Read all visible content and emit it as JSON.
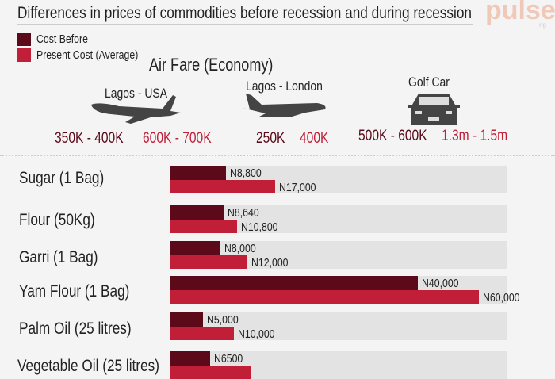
{
  "title": "Differences in prices of commodities before recession and during recession",
  "logo": {
    "text": "pulse",
    "sub": "ng"
  },
  "colors": {
    "before": "#5c0a1a",
    "present": "#c11f38",
    "track": "#e3e3e3"
  },
  "legend": [
    {
      "label": "Cost Before"
    },
    {
      "label": "Present Cost (Average)"
    }
  ],
  "airfare": {
    "title": "Air Fare (Economy)",
    "items": [
      {
        "label": "Lagos - USA",
        "icon": "airplane-icon",
        "before": "350K - 400K",
        "present": "600K - 700K"
      },
      {
        "label": "Lagos - London",
        "icon": "airplane-icon",
        "before": "250K",
        "present": "400K"
      },
      {
        "label": "Golf Car",
        "icon": "car-icon",
        "before": "500K - 600K",
        "present": "1.3m - 1.5m"
      }
    ]
  },
  "chart_data": {
    "type": "bar",
    "orientation": "horizontal",
    "categories": [
      "Sugar (1 Bag)",
      "Flour (50Kg)",
      "Garri (1 Bag)",
      "Yam Flour (1 Bag)",
      "Palm Oil (25 litres)",
      "Vegetable Oil (25 litres)"
    ],
    "series": [
      {
        "name": "Cost Before",
        "values": [
          8800,
          8640,
          8000,
          40000,
          5000,
          6500
        ],
        "labels": [
          "N8,800",
          "N8,640",
          "N8,000",
          "N40,000",
          "N5,000",
          "N6500"
        ]
      },
      {
        "name": "Present Cost (Average)",
        "values": [
          17000,
          10800,
          12000,
          60000,
          10000,
          null
        ],
        "labels": [
          "N17,000",
          "N10,800",
          "N12,000",
          "N60,000",
          "N10,000",
          ""
        ]
      }
    ]
  }
}
